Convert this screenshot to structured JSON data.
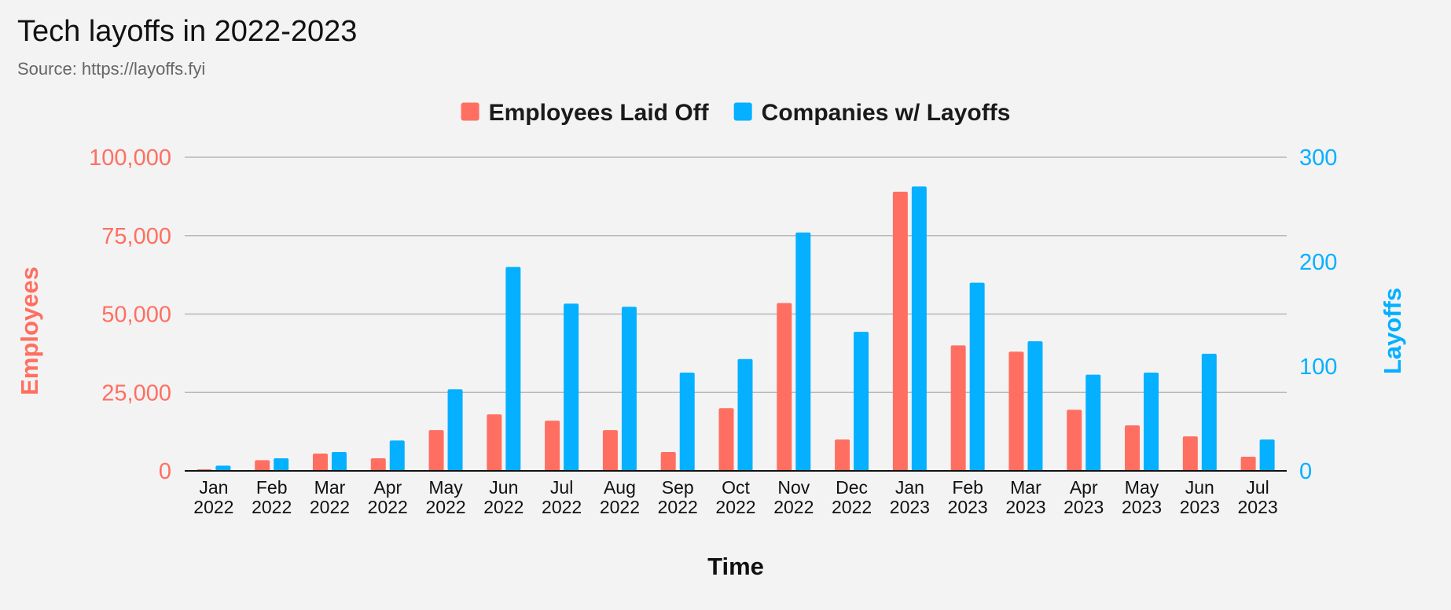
{
  "chart_data": {
    "type": "bar",
    "title": "Tech layoffs in 2022-2023",
    "subtitle": "Source: https://layoffs.fyi",
    "xlabel": "Time",
    "ylabel_left": "Employees",
    "ylabel_right": "Layoffs",
    "categories": [
      [
        "Jan",
        "2022"
      ],
      [
        "Feb",
        "2022"
      ],
      [
        "Mar",
        "2022"
      ],
      [
        "Apr",
        "2022"
      ],
      [
        "May",
        "2022"
      ],
      [
        "Jun",
        "2022"
      ],
      [
        "Jul",
        "2022"
      ],
      [
        "Aug",
        "2022"
      ],
      [
        "Sep",
        "2022"
      ],
      [
        "Oct",
        "2022"
      ],
      [
        "Nov",
        "2022"
      ],
      [
        "Dec",
        "2022"
      ],
      [
        "Jan",
        "2023"
      ],
      [
        "Feb",
        "2023"
      ],
      [
        "Mar",
        "2023"
      ],
      [
        "Apr",
        "2023"
      ],
      [
        "May",
        "2023"
      ],
      [
        "Jun",
        "2023"
      ],
      [
        "Jul",
        "2023"
      ]
    ],
    "series": [
      {
        "name": "Employees Laid Off",
        "axis": "left",
        "color": "#ff6f61",
        "values": [
          500,
          3400,
          5500,
          4000,
          13000,
          18000,
          16000,
          13000,
          6000,
          20000,
          53500,
          10000,
          89000,
          40000,
          38000,
          19500,
          14500,
          11000,
          4500
        ]
      },
      {
        "name": "Companies w/ Layoffs",
        "axis": "right",
        "color": "#04b0ff",
        "values": [
          5,
          12,
          18,
          29,
          78,
          195,
          160,
          157,
          94,
          107,
          228,
          133,
          272,
          180,
          124,
          92,
          94,
          112,
          30
        ]
      }
    ],
    "ylim_left": [
      0,
      100000
    ],
    "ylim_right": [
      0,
      300
    ],
    "yticks_left": [
      "0",
      "25,000",
      "50,000",
      "75,000",
      "100,000"
    ],
    "yticks_right": [
      "0",
      "100",
      "200",
      "300"
    ],
    "grid": true,
    "legend_position": "top-center",
    "colors": {
      "left_axis": "#ff6f61",
      "right_axis": "#04b0ff"
    }
  }
}
